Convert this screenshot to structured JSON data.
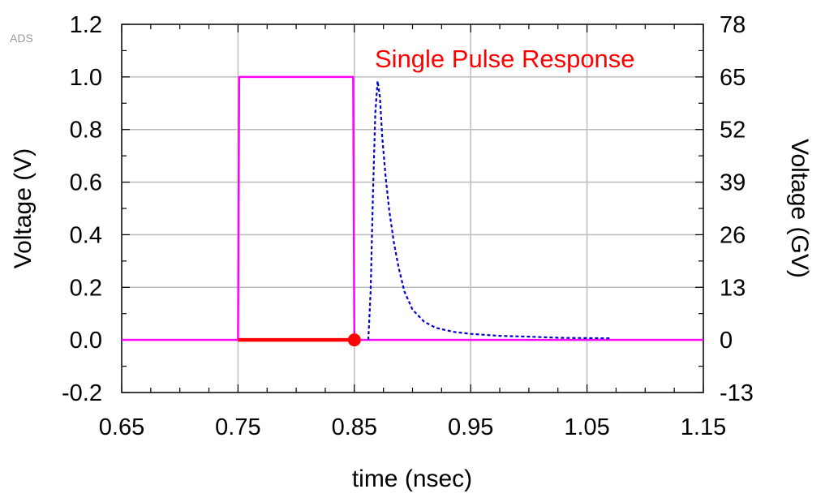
{
  "watermark": "ADS",
  "chart_data": {
    "type": "line",
    "title": "",
    "annotation": "Single Pulse Response",
    "xlabel": "time (nsec)",
    "ylabel_left": "Voltage (V)",
    "ylabel_right": "Voltage (GV)",
    "xlim": [
      0.65,
      1.15
    ],
    "ylim_left": [
      -0.2,
      1.2
    ],
    "ylim_right": [
      -13,
      78
    ],
    "x_ticks": [
      "0.65",
      "0.75",
      "0.85",
      "0.95",
      "1.05",
      "1.15"
    ],
    "x_tick_values": [
      0.65,
      0.75,
      0.85,
      0.95,
      1.05,
      1.15
    ],
    "y_left_ticks": [
      "-0.2",
      "0.0",
      "0.2",
      "0.4",
      "0.6",
      "0.8",
      "1.0",
      "1.2"
    ],
    "y_left_tick_values": [
      -0.2,
      0.0,
      0.2,
      0.4,
      0.6,
      0.8,
      1.0,
      1.2
    ],
    "y_right_ticks": [
      "-13",
      "0",
      "13",
      "26",
      "39",
      "52",
      "65",
      "78"
    ],
    "y_right_tick_values": [
      -13,
      0,
      13,
      26,
      39,
      52,
      65,
      78
    ],
    "grid": true,
    "series": [
      {
        "axis": "left",
        "color": "#ff00ff",
        "style": "solid",
        "points": [
          [
            0.65,
            0.0
          ],
          [
            0.75,
            0.0
          ],
          [
            0.751,
            1.0
          ],
          [
            0.849,
            1.0
          ],
          [
            0.85,
            0.0
          ],
          [
            1.15,
            0.0
          ]
        ]
      },
      {
        "axis": "left",
        "color": "#ff0000",
        "style": "thick",
        "points": [
          [
            0.75,
            0.0
          ],
          [
            0.85,
            0.0
          ]
        ]
      },
      {
        "axis": "right",
        "color": "#0000cc",
        "style": "dashed",
        "points": [
          [
            0.862,
            0
          ],
          [
            0.864,
            12
          ],
          [
            0.866,
            36
          ],
          [
            0.868,
            56
          ],
          [
            0.87,
            64
          ],
          [
            0.872,
            60
          ],
          [
            0.874,
            50
          ],
          [
            0.877,
            40
          ],
          [
            0.88,
            32
          ],
          [
            0.884,
            24
          ],
          [
            0.888,
            18
          ],
          [
            0.893,
            12
          ],
          [
            0.9,
            7.5
          ],
          [
            0.91,
            4.5
          ],
          [
            0.92,
            3
          ],
          [
            0.935,
            2
          ],
          [
            0.95,
            1.5
          ],
          [
            0.975,
            1
          ],
          [
            1.0,
            0.8
          ],
          [
            1.03,
            0.5
          ],
          [
            1.07,
            0.4
          ]
        ]
      }
    ],
    "marker": {
      "x": 0.85,
      "y": 0.0,
      "color": "#ff0000"
    }
  }
}
